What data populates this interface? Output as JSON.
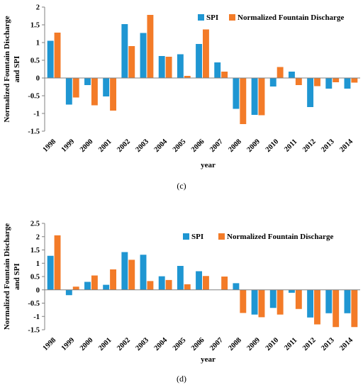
{
  "colors": {
    "spi": "#1f96d2",
    "discharge": "#f37b28",
    "axis": "#808080"
  },
  "chart_data": [
    {
      "type": "bar",
      "caption": "(c)",
      "xlabel": "year",
      "ylabel_line1": "Normalized Fountain Discharge",
      "ylabel_line2": "and SPI",
      "ylim": [
        -1.5,
        2
      ],
      "yticks": [
        2,
        1.5,
        1,
        0.5,
        0,
        -0.5,
        -1,
        -1.5
      ],
      "ytick_labels": [
        "2",
        "1.5",
        "1",
        "0.5",
        "0",
        "-0.5",
        "-1",
        "-1.5"
      ],
      "legend_position": "top-right",
      "categories": [
        "1998",
        "1999",
        "2000",
        "2001",
        "2002",
        "2003",
        "2004",
        "2005",
        "2006",
        "2007",
        "2008",
        "2009",
        "2010",
        "2011",
        "2012",
        "2013",
        "2014"
      ],
      "series": [
        {
          "name": "SPI",
          "values": [
            1.05,
            -0.75,
            -0.2,
            -0.52,
            1.52,
            1.27,
            0.62,
            0.67,
            0.96,
            0.44,
            -0.87,
            -1.04,
            -0.24,
            0.18,
            -0.82,
            -0.3,
            -0.3
          ]
        },
        {
          "name": "Normalized Fountain Discharge",
          "values": [
            1.28,
            -0.55,
            -0.77,
            -0.92,
            0.9,
            1.78,
            0.6,
            0.06,
            1.37,
            0.18,
            -1.3,
            -1.05,
            0.31,
            -0.2,
            -0.23,
            -0.12,
            -0.13
          ]
        }
      ]
    },
    {
      "type": "bar",
      "caption": "(d)",
      "xlabel": "year",
      "ylabel_line1": "Normalized Fountain Discharge",
      "ylabel_line2": "and SPI",
      "ylim": [
        -1.5,
        2.5
      ],
      "yticks": [
        2.5,
        2,
        1.5,
        1,
        0.5,
        0,
        -0.5,
        -1,
        -1.5
      ],
      "ytick_labels": [
        "2.5",
        "2",
        "1.5",
        "1",
        "0.5",
        "0",
        "-0.5",
        "-1",
        "-1.5"
      ],
      "legend_position": "top-right",
      "categories": [
        "1998",
        "1999",
        "2000",
        "2001",
        "2002",
        "2003",
        "2004",
        "2005",
        "2006",
        "2007",
        "2008",
        "2009",
        "2010",
        "2011",
        "2012",
        "2013",
        "2014"
      ],
      "series": [
        {
          "name": "SPI",
          "values": [
            1.28,
            -0.2,
            0.3,
            0.19,
            1.42,
            1.32,
            0.51,
            0.9,
            0.7,
            0.0,
            0.25,
            -0.93,
            -0.68,
            -0.11,
            -1.04,
            -0.88,
            -0.88
          ]
        },
        {
          "name": "Normalized Fountain Discharge",
          "values": [
            2.05,
            0.12,
            0.54,
            0.77,
            1.13,
            0.33,
            0.37,
            0.21,
            0.52,
            0.5,
            -0.87,
            -1.03,
            -0.93,
            -0.72,
            -1.3,
            -1.4,
            -1.4
          ]
        }
      ]
    }
  ]
}
